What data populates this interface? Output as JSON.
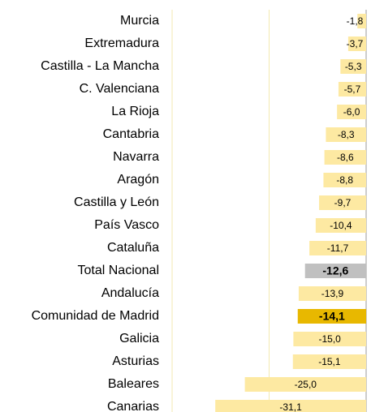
{
  "chart_data": {
    "type": "bar",
    "orientation": "horizontal",
    "categories": [
      "Murcia",
      "Extremadura",
      "Castilla - La Mancha",
      "C. Valenciana",
      "La Rioja",
      "Cantabria",
      "Navarra",
      "Aragón",
      "Castilla y León",
      "País Vasco",
      "Cataluña",
      "Total Nacional",
      "Andalucía",
      "Comunidad de Madrid",
      "Galicia",
      "Asturias",
      "Baleares",
      "Canarias"
    ],
    "values": [
      -1.8,
      -3.7,
      -5.3,
      -5.7,
      -6.0,
      -8.3,
      -8.6,
      -8.8,
      -9.7,
      -10.4,
      -11.7,
      -12.6,
      -13.9,
      -14.1,
      -15.0,
      -15.1,
      -25.0,
      -31.1
    ],
    "value_labels": [
      "-1,8",
      "-3,7",
      "-5,3",
      "-5,7",
      "-6,0",
      "-8,3",
      "-8,6",
      "-8,8",
      "-9,7",
      "-10,4",
      "-11,7",
      "-12,6",
      "-13,9",
      "-14,1",
      "-15,0",
      "-15,1",
      "-25,0",
      "-31,1"
    ],
    "colors": [
      "#fde9a2",
      "#fde9a2",
      "#fde9a2",
      "#fde9a2",
      "#fde9a2",
      "#fde9a2",
      "#fde9a2",
      "#fde9a2",
      "#fde9a2",
      "#fde9a2",
      "#fde9a2",
      "#c0c0c0",
      "#fde9a2",
      "#e8b800",
      "#fde9a2",
      "#fde9a2",
      "#fde9a2",
      "#fde9a2"
    ],
    "bold": [
      false,
      false,
      false,
      false,
      false,
      false,
      false,
      false,
      false,
      false,
      false,
      true,
      false,
      true,
      false,
      false,
      false,
      false
    ],
    "xlim": [
      -40,
      0
    ],
    "xticks": [
      -40,
      -20,
      0
    ],
    "grid": true
  }
}
